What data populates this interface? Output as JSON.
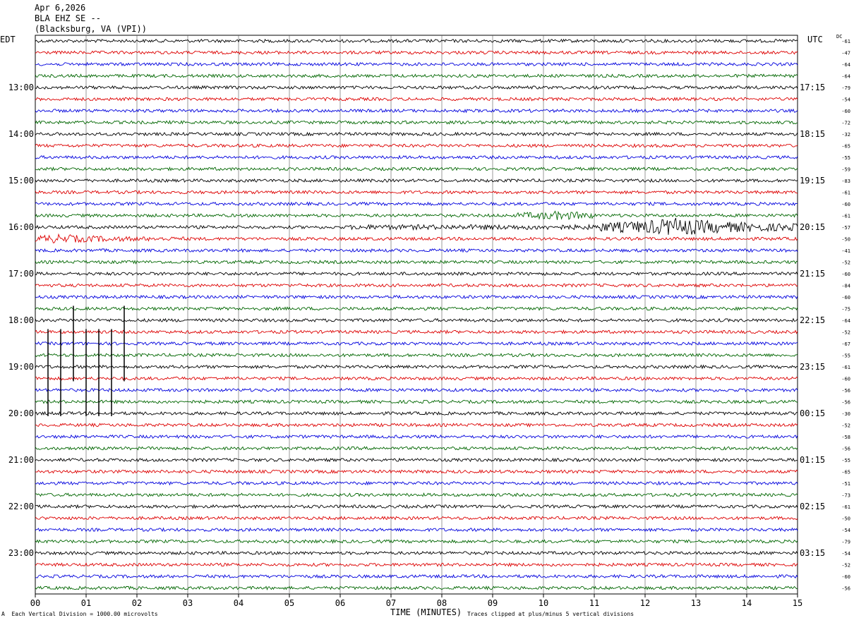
{
  "header": {
    "date": "Apr 6,2026",
    "station": "BLA EHZ SE --",
    "location": "(Blacksburg, VA (VPI))"
  },
  "left_timezone": "EDT",
  "right_timezone": "UTC",
  "dc_label": "DC",
  "footer": {
    "left_text": "Each Vertical Division = 1000.00 microvolts",
    "left_glyph": "A",
    "center_text": "TIME (MINUTES)",
    "right_text": "Traces clipped at plus/minus 5 vertical divisions"
  },
  "colors": {
    "trace_cycle": [
      "#000000",
      "#dd0000",
      "#0000dd",
      "#006600"
    ],
    "grid": "#000000",
    "background": "#ffffff"
  },
  "chart_data": {
    "type": "line",
    "subtype": "helicorder",
    "xlabel": "TIME (MINUTES)",
    "xlim": [
      0,
      15
    ],
    "x_ticks": [
      "00",
      "01",
      "02",
      "03",
      "04",
      "05",
      "06",
      "07",
      "08",
      "09",
      "10",
      "11",
      "12",
      "13",
      "14",
      "15"
    ],
    "rows_per_hour": 4,
    "minutes_per_row": 15,
    "row_count": 48,
    "left_hour_labels": [
      {
        "row": 4,
        "label": "13:00"
      },
      {
        "row": 8,
        "label": "14:00"
      },
      {
        "row": 12,
        "label": "15:00"
      },
      {
        "row": 16,
        "label": "16:00"
      },
      {
        "row": 20,
        "label": "17:00"
      },
      {
        "row": 24,
        "label": "18:00"
      },
      {
        "row": 28,
        "label": "19:00"
      },
      {
        "row": 32,
        "label": "20:00"
      },
      {
        "row": 36,
        "label": "21:00"
      },
      {
        "row": 40,
        "label": "22:00"
      },
      {
        "row": 44,
        "label": "23:00"
      }
    ],
    "right_hour_labels": [
      {
        "row": 4,
        "label": "17:15"
      },
      {
        "row": 8,
        "label": "18:15"
      },
      {
        "row": 12,
        "label": "19:15"
      },
      {
        "row": 16,
        "label": "20:15"
      },
      {
        "row": 20,
        "label": "21:15"
      },
      {
        "row": 24,
        "label": "22:15"
      },
      {
        "row": 28,
        "label": "23:15"
      },
      {
        "row": 32,
        "label": "00:15"
      },
      {
        "row": 36,
        "label": "01:15"
      },
      {
        "row": 40,
        "label": "02:15"
      },
      {
        "row": 44,
        "label": "03:15"
      }
    ],
    "dc_offsets": [
      -61,
      -47,
      -64,
      -64,
      -79,
      -54,
      -60,
      -72,
      -32,
      -65,
      -55,
      -59,
      -83,
      -61,
      -60,
      -61,
      -57,
      -50,
      -41,
      -52,
      -60,
      -84,
      -60,
      -75,
      -64,
      -52,
      -67,
      -55,
      -61,
      -60,
      -56,
      -56,
      -30,
      -52,
      -58,
      -56,
      -55,
      -65,
      -51,
      -73,
      -61,
      -50,
      -54,
      -79,
      -54,
      -52,
      -60,
      -56
    ],
    "events": [
      {
        "row": 16,
        "start_minute": 6.2,
        "end_minute": 15,
        "peak_minute": 12.6,
        "description_level": "large"
      },
      {
        "row": 15,
        "start_minute": 9.5,
        "end_minute": 11.0,
        "peak_minute": 10.3,
        "description_level": "small"
      },
      {
        "row": 17,
        "start_minute": 0,
        "end_minute": 3.0,
        "peak_minute": 0.5,
        "description_level": "small"
      }
    ],
    "spikes": [
      {
        "row_start": 23,
        "row_end": 29,
        "minute": 0.75
      },
      {
        "row_start": 23,
        "row_end": 29,
        "minute": 1.75
      },
      {
        "row_start": 25,
        "row_end": 32,
        "minute": 0.25
      },
      {
        "row_start": 25,
        "row_end": 32,
        "minute": 0.5
      },
      {
        "row_start": 25,
        "row_end": 32,
        "minute": 1.0
      },
      {
        "row_start": 25,
        "row_end": 32,
        "minute": 1.25
      },
      {
        "row_start": 25,
        "row_end": 32,
        "minute": 1.5
      }
    ]
  }
}
